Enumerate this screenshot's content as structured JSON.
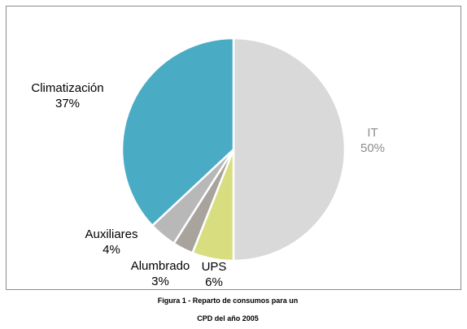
{
  "chart_data": {
    "type": "pie",
    "slices": [
      {
        "label": "IT",
        "value": 50,
        "display": "50%",
        "color": "#d9d9d9",
        "label_color": "#8c8c8c"
      },
      {
        "label": "UPS",
        "value": 6,
        "display": "6%",
        "color": "#d8dd7f",
        "label_color": "#000000"
      },
      {
        "label": "Alumbrado",
        "value": 3,
        "display": "3%",
        "color": "#a8a39d",
        "label_color": "#000000"
      },
      {
        "label": "Auxiliares",
        "value": 4,
        "display": "4%",
        "color": "#b8b8b8",
        "label_color": "#000000"
      },
      {
        "label": "Climatización",
        "value": 37,
        "display": "37%",
        "color": "#4aabc5",
        "label_color": "#000000"
      }
    ],
    "start_angle_deg": 0,
    "direction": "clockwise"
  },
  "caption": {
    "line1": "Figura 1 - Reparto de consumos para un",
    "line2": "CPD del año 2005"
  }
}
